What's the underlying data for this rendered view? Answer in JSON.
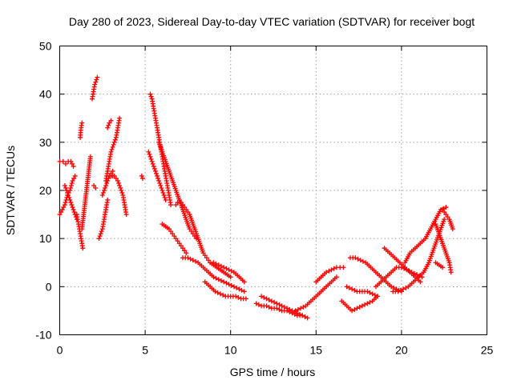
{
  "chart_data": {
    "type": "scatter",
    "title": "Day 280 of 2023, Sidereal Day-to-day VTEC variation (SDTVAR) for receiver bogt",
    "xlabel": "GPS time / hours",
    "ylabel": "SDTVAR / TECUs",
    "xlim": [
      0,
      25
    ],
    "ylim": [
      -10,
      50
    ],
    "xticks": [
      "0",
      "5",
      "10",
      "15",
      "20",
      "25"
    ],
    "yticks": [
      "-10",
      "0",
      "10",
      "20",
      "30",
      "40",
      "50"
    ],
    "grid": true,
    "marker": "+",
    "color": "#ff0000",
    "series": [
      {
        "name": "arc1",
        "x": [
          0.0,
          0.2,
          0.35,
          0.5,
          0.65,
          0.8
        ],
        "y": [
          26,
          26,
          25.5,
          26,
          26,
          25
        ]
      },
      {
        "name": "arc2",
        "x": [
          0.0,
          0.15,
          0.3,
          0.45,
          0.6,
          0.75,
          0.9
        ],
        "y": [
          15,
          16,
          17,
          19,
          20,
          22,
          23
        ]
      },
      {
        "name": "arc3",
        "x": [
          0.3,
          0.4,
          0.5,
          0.6,
          0.7,
          0.8,
          0.9,
          1.0
        ],
        "y": [
          21,
          20,
          19,
          18,
          17,
          16,
          15,
          14
        ]
      },
      {
        "name": "arc4",
        "x": [
          1.0,
          1.05,
          1.1,
          1.15,
          1.2,
          1.25,
          1.3,
          1.35
        ],
        "y": [
          15,
          14,
          13,
          12,
          11,
          10,
          9,
          8
        ]
      },
      {
        "name": "arc5",
        "x": [
          1.3,
          1.4,
          1.5,
          1.6,
          1.7,
          1.8
        ],
        "y": [
          12,
          15,
          18,
          21,
          24,
          27
        ]
      },
      {
        "name": "arc6",
        "x": [
          1.2,
          1.25,
          1.3
        ],
        "y": [
          31,
          33,
          34
        ]
      },
      {
        "name": "arc7",
        "x": [
          1.9,
          1.95,
          2.0,
          2.05,
          2.1,
          2.15,
          2.2
        ],
        "y": [
          39,
          40,
          41,
          42,
          42.5,
          43,
          43.5
        ]
      },
      {
        "name": "arc8",
        "x": [
          2.3,
          2.4,
          2.5,
          2.6,
          2.7,
          2.8
        ],
        "y": [
          10,
          11,
          12,
          14,
          16,
          18
        ]
      },
      {
        "name": "arc9",
        "x": [
          2.5,
          2.6,
          2.7,
          2.8,
          2.9,
          3.0,
          3.1
        ],
        "y": [
          19,
          20,
          21,
          22,
          23,
          23.5,
          24
        ]
      },
      {
        "name": "arc10",
        "x": [
          2.7,
          2.8,
          2.9,
          3.0,
          3.1,
          3.2,
          3.3,
          3.4,
          3.5
        ],
        "y": [
          22,
          24,
          26,
          28,
          29,
          30,
          31,
          33,
          35
        ]
      },
      {
        "name": "arc11",
        "x": [
          3.0,
          3.1,
          3.2,
          3.3,
          3.4,
          3.5,
          3.6,
          3.7,
          3.8,
          3.9
        ],
        "y": [
          23,
          23,
          23,
          22.5,
          22,
          21,
          20,
          19,
          17,
          15
        ]
      },
      {
        "name": "arc12",
        "x": [
          2.8,
          2.9,
          3.0
        ],
        "y": [
          33,
          34,
          34.5
        ]
      },
      {
        "name": "arc13",
        "x": [
          2.0,
          2.1
        ],
        "y": [
          21,
          20.5
        ]
      },
      {
        "name": "arc14",
        "x": [
          4.8,
          4.85
        ],
        "y": [
          23,
          22.5
        ]
      },
      {
        "name": "arc15",
        "x": [
          5.3,
          5.4,
          5.5,
          5.6,
          5.7,
          5.8,
          5.9,
          6.0,
          6.1,
          6.2,
          6.3,
          6.4,
          6.5
        ],
        "y": [
          40,
          39,
          37,
          35,
          33,
          31,
          29,
          27,
          25,
          23,
          21,
          19,
          17
        ]
      },
      {
        "name": "arc16",
        "x": [
          5.2,
          5.3,
          5.4,
          5.5,
          5.6,
          5.7,
          5.8,
          5.9,
          6.0,
          6.1,
          6.2
        ],
        "y": [
          28,
          27,
          26,
          25,
          24,
          23,
          22,
          21,
          20,
          19,
          18
        ]
      },
      {
        "name": "arc17",
        "x": [
          5.8,
          6.0,
          6.2,
          6.4,
          6.6,
          6.8,
          7.0,
          7.2,
          7.4,
          7.6,
          7.8,
          8.0
        ],
        "y": [
          30,
          28,
          26,
          24,
          22,
          20,
          18,
          16,
          14,
          12,
          11,
          10
        ]
      },
      {
        "name": "arc18",
        "x": [
          6.0,
          6.2,
          6.4,
          6.6,
          6.8,
          7.0,
          7.2,
          7.4
        ],
        "y": [
          13,
          12.5,
          12,
          11,
          10,
          9,
          8,
          7
        ]
      },
      {
        "name": "arc19",
        "x": [
          6.8,
          7.0,
          7.2,
          7.4,
          7.6,
          7.8,
          8.0,
          8.2,
          8.4,
          8.6,
          8.8,
          9.0,
          9.2,
          9.4,
          9.6,
          9.8,
          10.0
        ],
        "y": [
          17,
          18,
          17,
          16,
          15,
          13,
          11,
          9,
          7,
          6,
          5,
          4.5,
          4,
          3.5,
          3,
          2.5,
          2
        ]
      },
      {
        "name": "arc20",
        "x": [
          7.2,
          7.5,
          7.8,
          8.1,
          8.4,
          8.7,
          9.0,
          9.3,
          9.6,
          9.9,
          10.2,
          10.5,
          10.8
        ],
        "y": [
          6,
          6,
          5.5,
          5,
          4,
          3,
          2,
          1.5,
          1,
          0.5,
          0,
          -0.5,
          -1
        ]
      },
      {
        "name": "arc21",
        "x": [
          9.0,
          9.3,
          9.6,
          9.9,
          10.2,
          10.5,
          10.8
        ],
        "y": [
          5,
          4.5,
          4,
          3.5,
          3,
          2,
          1
        ]
      },
      {
        "name": "arc22",
        "x": [
          8.5,
          8.8,
          9.1,
          9.4,
          9.7,
          10.0,
          10.3,
          10.6,
          10.9
        ],
        "y": [
          1,
          0,
          -1,
          -1.5,
          -2,
          -2,
          -2,
          -2.5,
          -2.5
        ]
      },
      {
        "name": "arc23",
        "x": [
          11.8,
          12.1,
          12.4,
          12.7,
          13.0,
          13.3,
          13.6,
          13.9,
          14.2,
          14.5
        ],
        "y": [
          -2,
          -2.5,
          -3,
          -3.5,
          -4,
          -4.5,
          -5,
          -5.5,
          -6,
          -6.5
        ]
      },
      {
        "name": "arc24",
        "x": [
          11.5,
          11.8,
          12.1,
          12.4,
          12.7,
          13.0,
          13.3,
          13.6,
          13.9,
          14.2
        ],
        "y": [
          -3.5,
          -4,
          -4,
          -4.5,
          -4.5,
          -5,
          -5,
          -5.5,
          -6,
          -6
        ]
      },
      {
        "name": "arc25",
        "x": [
          13.8,
          14.1,
          14.4,
          14.7,
          15.0,
          15.3,
          15.6,
          15.9,
          16.2
        ],
        "y": [
          -5,
          -4.5,
          -4,
          -3,
          -2,
          -1,
          0,
          1,
          2
        ]
      },
      {
        "name": "arc26",
        "x": [
          15.0,
          15.3,
          15.6,
          15.9,
          16.2,
          16.4,
          16.6
        ],
        "y": [
          1,
          2,
          3,
          3.5,
          4,
          4,
          4
        ]
      },
      {
        "name": "arc27",
        "x": [
          16.5,
          16.8,
          17.1,
          17.4,
          17.7,
          18.0,
          18.3,
          18.6
        ],
        "y": [
          -3,
          -4,
          -5,
          -4.5,
          -4,
          -3.5,
          -3,
          -2
        ]
      },
      {
        "name": "arc28",
        "x": [
          17.0,
          17.3,
          17.6,
          17.9,
          18.2,
          18.5,
          18.8,
          19.1,
          19.4,
          19.7,
          20.0
        ],
        "y": [
          6,
          6,
          5.5,
          5,
          4,
          3,
          2,
          1,
          0,
          -0.5,
          -1
        ]
      },
      {
        "name": "arc29",
        "x": [
          16.8,
          17.1,
          17.4,
          17.7,
          18.0,
          18.3,
          18.6
        ],
        "y": [
          0,
          -0.5,
          -1,
          -1,
          -1,
          -1.5,
          -2
        ]
      },
      {
        "name": "arc30",
        "x": [
          18.5,
          18.8,
          19.1,
          19.4,
          19.7,
          20.0,
          20.3,
          20.6,
          20.9,
          21.2
        ],
        "y": [
          0,
          1,
          2,
          3,
          4,
          4,
          3.5,
          3,
          2.5,
          2
        ]
      },
      {
        "name": "arc31",
        "x": [
          19.0,
          19.3,
          19.6,
          19.9,
          20.2,
          20.5,
          20.8,
          21.1
        ],
        "y": [
          8,
          7,
          6,
          5,
          4,
          3,
          2,
          1
        ]
      },
      {
        "name": "arc32",
        "x": [
          19.5,
          19.8,
          20.1,
          20.4,
          20.7,
          21.0,
          21.3,
          21.6,
          21.9,
          22.2,
          22.5
        ],
        "y": [
          -1,
          -1,
          -0.5,
          0,
          1,
          2,
          3,
          5,
          8,
          11,
          14
        ]
      },
      {
        "name": "arc33",
        "x": [
          20.2,
          20.5,
          20.8,
          21.1,
          21.4,
          21.7,
          22.0,
          22.3,
          22.6
        ],
        "y": [
          5,
          7,
          8,
          9,
          10,
          12,
          14,
          16,
          16.5
        ]
      },
      {
        "name": "arc34",
        "x": [
          22.0,
          22.2,
          22.4,
          22.6,
          22.8,
          22.9
        ],
        "y": [
          13,
          11,
          9,
          7,
          5,
          3
        ]
      },
      {
        "name": "arc35",
        "x": [
          22.4,
          22.6,
          22.8,
          23.0
        ],
        "y": [
          16,
          15,
          14,
          12
        ]
      },
      {
        "name": "arc36",
        "x": [
          22.0,
          22.2,
          22.4
        ],
        "y": [
          5,
          4.5,
          4
        ]
      }
    ]
  }
}
